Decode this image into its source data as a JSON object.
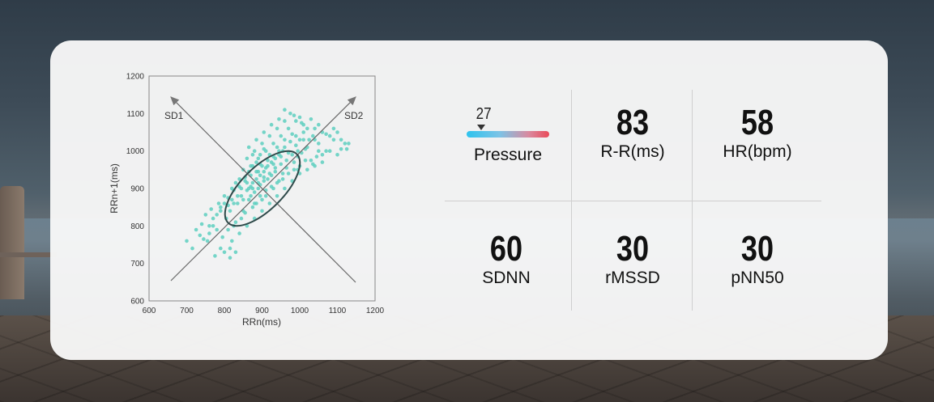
{
  "chart_data": {
    "type": "scatter",
    "title": "",
    "xlabel": "RRn(ms)",
    "ylabel": "RRn+1(ms)",
    "xlim": [
      600,
      1200
    ],
    "ylim": [
      600,
      1200
    ],
    "xticks": [
      "600",
      "700",
      "800",
      "900",
      "1000",
      "1100",
      "1200"
    ],
    "yticks": [
      "600",
      "700",
      "800",
      "900",
      "1000",
      "1100",
      "1200"
    ],
    "grid": false,
    "point_color": "#5ecfc0",
    "ellipse_center": [
      905,
      915
    ],
    "annotations": {
      "sd1": "SD1",
      "sd2": "SD2"
    },
    "points": [
      [
        700,
        760
      ],
      [
        715,
        740
      ],
      [
        725,
        790
      ],
      [
        735,
        775
      ],
      [
        740,
        805
      ],
      [
        750,
        830
      ],
      [
        755,
        760
      ],
      [
        760,
        800
      ],
      [
        765,
        845
      ],
      [
        770,
        820
      ],
      [
        775,
        720
      ],
      [
        780,
        790
      ],
      [
        785,
        860
      ],
      [
        790,
        840
      ],
      [
        795,
        770
      ],
      [
        800,
        880
      ],
      [
        805,
        820
      ],
      [
        810,
        855
      ],
      [
        815,
        740
      ],
      [
        820,
        870
      ],
      [
        825,
        895
      ],
      [
        830,
        810
      ],
      [
        835,
        860
      ],
      [
        840,
        905
      ],
      [
        845,
        880
      ],
      [
        850,
        840
      ],
      [
        855,
        920
      ],
      [
        860,
        895
      ],
      [
        865,
        870
      ],
      [
        870,
        935
      ],
      [
        875,
        900
      ],
      [
        880,
        860
      ],
      [
        885,
        945
      ],
      [
        890,
        915
      ],
      [
        895,
        880
      ],
      [
        900,
        960
      ],
      [
        905,
        930
      ],
      [
        910,
        895
      ],
      [
        915,
        975
      ],
      [
        920,
        940
      ],
      [
        925,
        905
      ],
      [
        930,
        985
      ],
      [
        935,
        955
      ],
      [
        940,
        915
      ],
      [
        945,
        1000
      ],
      [
        950,
        965
      ],
      [
        955,
        925
      ],
      [
        960,
        1010
      ],
      [
        965,
        975
      ],
      [
        970,
        940
      ],
      [
        975,
        1025
      ],
      [
        980,
        990
      ],
      [
        985,
        950
      ],
      [
        990,
        1040
      ],
      [
        995,
        1000
      ],
      [
        1000,
        960
      ],
      [
        1010,
        1050
      ],
      [
        1020,
        1010
      ],
      [
        1030,
        975
      ],
      [
        1040,
        1060
      ],
      [
        1050,
        1020
      ],
      [
        1060,
        990
      ],
      [
        1070,
        1045
      ],
      [
        1080,
        1000
      ],
      [
        1090,
        1030
      ],
      [
        1100,
        990
      ],
      [
        1110,
        1005
      ],
      [
        1120,
        1020
      ],
      [
        1000,
        1090
      ],
      [
        975,
        1100
      ],
      [
        960,
        1080
      ],
      [
        940,
        1060
      ],
      [
        920,
        1040
      ],
      [
        900,
        1020
      ],
      [
        880,
        1000
      ],
      [
        860,
        980
      ],
      [
        850,
        950
      ],
      [
        870,
        960
      ],
      [
        890,
        980
      ],
      [
        910,
        1000
      ],
      [
        930,
        1020
      ],
      [
        950,
        1040
      ],
      [
        970,
        1060
      ],
      [
        990,
        1080
      ],
      [
        1010,
        1070
      ],
      [
        1030,
        1085
      ],
      [
        1050,
        1070
      ],
      [
        880,
        820
      ],
      [
        900,
        840
      ],
      [
        920,
        860
      ],
      [
        940,
        880
      ],
      [
        960,
        900
      ],
      [
        980,
        920
      ],
      [
        1000,
        940
      ],
      [
        1020,
        950
      ],
      [
        1040,
        960
      ],
      [
        1060,
        970
      ],
      [
        860,
        800
      ],
      [
        840,
        780
      ],
      [
        820,
        760
      ],
      [
        900,
        870
      ],
      [
        910,
        880
      ],
      [
        930,
        900
      ],
      [
        945,
        920
      ],
      [
        955,
        940
      ],
      [
        965,
        955
      ],
      [
        985,
        970
      ],
      [
        995,
        985
      ],
      [
        1005,
        995
      ],
      [
        1015,
        1005
      ],
      [
        1025,
        1030
      ],
      [
        1035,
        1040
      ],
      [
        870,
        880
      ],
      [
        880,
        890
      ],
      [
        890,
        900
      ],
      [
        895,
        910
      ],
      [
        905,
        920
      ],
      [
        915,
        925
      ],
      [
        925,
        935
      ],
      [
        935,
        945
      ],
      [
        845,
        900
      ],
      [
        835,
        880
      ],
      [
        825,
        860
      ],
      [
        815,
        840
      ],
      [
        855,
        930
      ],
      [
        865,
        945
      ],
      [
        875,
        960
      ],
      [
        885,
        970
      ],
      [
        895,
        990
      ],
      [
        905,
        1005
      ],
      [
        850,
        870
      ],
      [
        860,
        915
      ],
      [
        870,
        905
      ],
      [
        890,
        945
      ],
      [
        910,
        955
      ],
      [
        930,
        965
      ],
      [
        950,
        985
      ],
      [
        970,
        995
      ],
      [
        990,
        1015
      ],
      [
        1010,
        1030
      ],
      [
        820,
        900
      ],
      [
        830,
        915
      ],
      [
        840,
        925
      ],
      [
        800,
        860
      ],
      [
        810,
        875
      ],
      [
        790,
        850
      ],
      [
        780,
        830
      ],
      [
        770,
        800
      ],
      [
        760,
        780
      ],
      [
        745,
        765
      ],
      [
        1070,
        1000
      ],
      [
        1080,
        1040
      ],
      [
        1060,
        1050
      ],
      [
        1040,
        1030
      ],
      [
        1020,
        1060
      ],
      [
        1000,
        1030
      ],
      [
        980,
        1045
      ],
      [
        960,
        1030
      ],
      [
        940,
        1010
      ],
      [
        920,
        990
      ],
      [
        1090,
        1060
      ],
      [
        1100,
        1050
      ],
      [
        1110,
        1030
      ],
      [
        1130,
        1020
      ],
      [
        1125,
        1005
      ],
      [
        1050,
        1000
      ],
      [
        1045,
        985
      ],
      [
        1035,
        965
      ],
      [
        1015,
        975
      ],
      [
        995,
        950
      ],
      [
        830,
        730
      ],
      [
        815,
        715
      ],
      [
        800,
        730
      ],
      [
        790,
        740
      ],
      [
        810,
        790
      ],
      [
        825,
        800
      ],
      [
        845,
        820
      ],
      [
        855,
        835
      ],
      [
        875,
        850
      ],
      [
        885,
        860
      ],
      [
        865,
        900
      ],
      [
        875,
        915
      ],
      [
        885,
        925
      ],
      [
        895,
        935
      ],
      [
        905,
        945
      ],
      [
        915,
        960
      ],
      [
        925,
        970
      ],
      [
        935,
        980
      ],
      [
        945,
        990
      ],
      [
        955,
        1000
      ],
      [
        960,
        1110
      ],
      [
        985,
        1095
      ],
      [
        1005,
        1075
      ],
      [
        945,
        1085
      ],
      [
        925,
        1070
      ],
      [
        905,
        1050
      ],
      [
        885,
        1030
      ],
      [
        865,
        1010
      ],
      [
        875,
        990
      ],
      [
        895,
        965
      ]
    ]
  },
  "metrics": {
    "pressure": {
      "value": "27",
      "label": "Pressure",
      "level": 0.18
    },
    "rr": {
      "value": "83",
      "label": "R-R(ms)"
    },
    "hr": {
      "value": "58",
      "label": "HR(bpm)"
    },
    "sdnn": {
      "value": "60",
      "label": "SDNN"
    },
    "rmssd": {
      "value": "30",
      "label": "rMSSD"
    },
    "pnn50": {
      "value": "30",
      "label": "pNN50"
    }
  }
}
